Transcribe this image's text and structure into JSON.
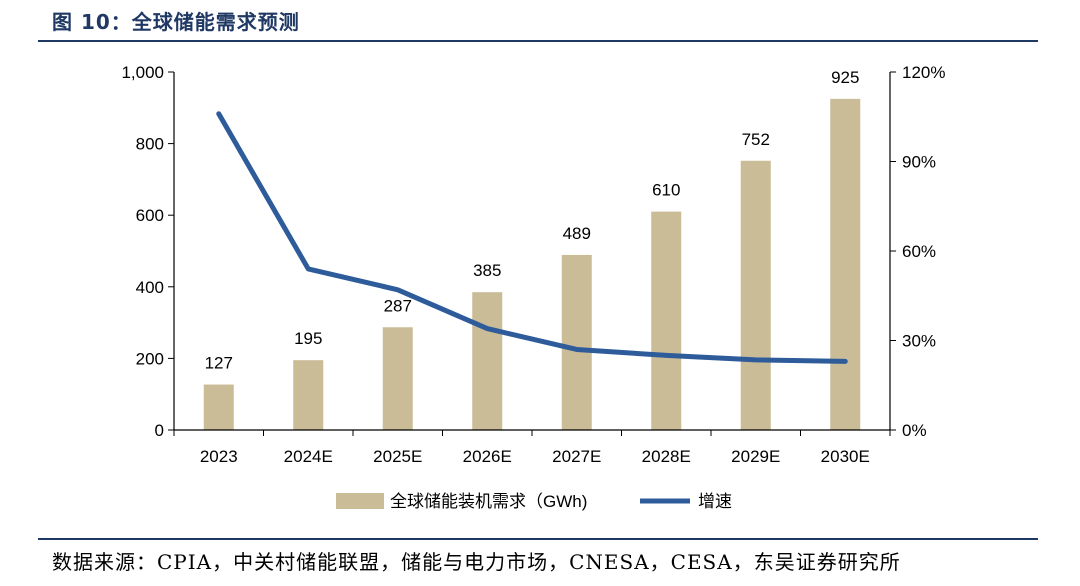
{
  "figure_title": "图 10：全球储能需求预测",
  "source": "数据来源：CPIA，中关村储能联盟，储能与电力市场，CNESA，CESA，东吴证券研究所",
  "chart_data": {
    "type": "bar",
    "categories": [
      "2023",
      "2024E",
      "2025E",
      "2026E",
      "2027E",
      "2028E",
      "2029E",
      "2030E"
    ],
    "series": [
      {
        "name": "全球储能装机需求（GWh)",
        "type": "bar",
        "axis": "left",
        "color": "#c9bc96",
        "values": [
          127,
          195,
          287,
          385,
          489,
          610,
          752,
          925
        ],
        "data_labels": [
          "127",
          "195",
          "287",
          "385",
          "489",
          "610",
          "752",
          "925"
        ]
      },
      {
        "name": "增速",
        "type": "line",
        "axis": "right",
        "color": "#2e5b9a",
        "values": [
          106,
          54,
          47,
          34,
          27,
          25,
          23.5,
          23
        ]
      }
    ],
    "y_left": {
      "min": 0,
      "max": 1000,
      "ticks": [
        0,
        200,
        400,
        600,
        800,
        1000
      ],
      "tick_labels": [
        "0",
        "200",
        "400",
        "600",
        "800",
        "1,000"
      ]
    },
    "y_right": {
      "min": 0,
      "max": 120,
      "ticks": [
        0,
        30,
        60,
        90,
        120
      ],
      "tick_labels": [
        "0%",
        "30%",
        "60%",
        "90%",
        "120%"
      ]
    },
    "grid": false,
    "legend_position": "bottom"
  }
}
